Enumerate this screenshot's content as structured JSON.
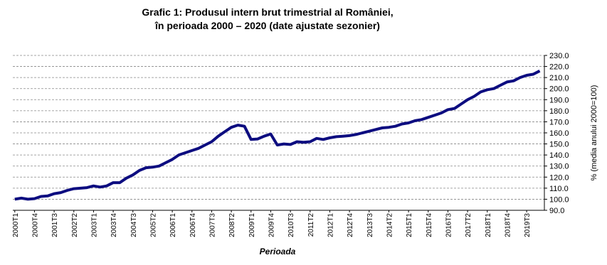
{
  "chart_data": {
    "type": "line",
    "title": "Grafic 1: Produsul intern brut trimestrial al României,",
    "subtitle": "în perioada 2000 – 2020 (date ajustate sezonier)",
    "x_label": "Perioada",
    "y_label": "% (media anului 2000=100)",
    "categories": [
      "2000T1",
      null,
      null,
      "2000T4",
      null,
      null,
      "2001T3",
      null,
      null,
      "2002T2",
      null,
      null,
      "2003T1",
      null,
      null,
      "2003T4",
      null,
      null,
      "2004T3",
      null,
      null,
      "2005T2",
      null,
      null,
      "2006T1",
      null,
      null,
      "2006T4",
      null,
      null,
      "2007T3",
      null,
      null,
      "2008T2",
      null,
      null,
      "2009T1",
      null,
      null,
      "2009T4",
      null,
      null,
      "2010T3",
      null,
      null,
      "2011T2",
      null,
      null,
      "2012T1",
      null,
      null,
      "2012T4",
      null,
      null,
      "2013T3",
      null,
      null,
      "2014T2",
      null,
      null,
      "2015T1",
      null,
      null,
      "2015T4",
      null,
      null,
      "2016T3",
      null,
      null,
      "2017T2",
      null,
      null,
      "2018T1",
      null,
      null,
      "2018T4",
      null,
      null,
      "2019T3",
      null,
      null
    ],
    "values": [
      100,
      101,
      100,
      100.5,
      102.5,
      103,
      105,
      106,
      108,
      109.5,
      110,
      110.5,
      112,
      111,
      112,
      115,
      115,
      119,
      122,
      126,
      128.5,
      129,
      130,
      133,
      136,
      140,
      142,
      144,
      146,
      149,
      152,
      157,
      161,
      165,
      167,
      166,
      154,
      154.5,
      157,
      159,
      149,
      150,
      149.5,
      152,
      151.5,
      152,
      155,
      154,
      155.5,
      156.5,
      157,
      157.5,
      158.5,
      160,
      161.5,
      163,
      164.5,
      165,
      166,
      168,
      169,
      171,
      172,
      174,
      176,
      178,
      181,
      182,
      186,
      190,
      193,
      197,
      199,
      200,
      203,
      206,
      207,
      210,
      212,
      213,
      216
    ],
    "color": "#0d0d80",
    "ylim": [
      90,
      230
    ],
    "yticks": [
      {
        "value": 90,
        "label": "90.0"
      },
      {
        "value": 100,
        "label": "100.0"
      },
      {
        "value": 110,
        "label": "110.0"
      },
      {
        "value": 120,
        "label": "120.0"
      },
      {
        "value": 130,
        "label": "130.0"
      },
      {
        "value": 140,
        "label": "140.0"
      },
      {
        "value": 150,
        "label": "150.0"
      },
      {
        "value": 160,
        "label": "160.0"
      },
      {
        "value": 170,
        "label": "170.0"
      },
      {
        "value": 180,
        "label": "180.0"
      },
      {
        "value": 190,
        "label": "190.0"
      },
      {
        "value": 200,
        "label": "200.0"
      },
      {
        "value": 210,
        "label": "210.0"
      },
      {
        "value": 220,
        "label": "220.0"
      },
      {
        "value": 230,
        "label": "230.0"
      }
    ],
    "grid": true
  }
}
